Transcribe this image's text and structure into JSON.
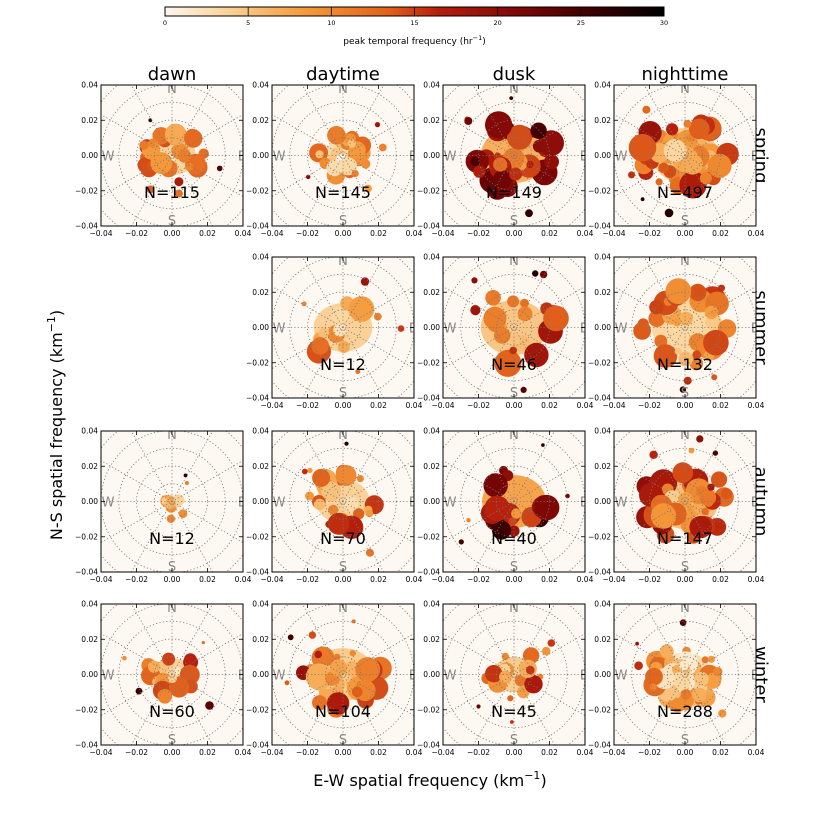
{
  "chart_data": {
    "type": "scatter",
    "title": "",
    "xlabel": "E-W spatial frequency (km",
    "ylabel": "N-S spatial frequency (km",
    "axis_unit_exponent": "−1",
    "xlim": [
      -0.04,
      0.04
    ],
    "ylim": [
      -0.04,
      0.04
    ],
    "ticks": [
      "−0.04",
      "−0.02",
      "0.00",
      "0.02",
      "0.04"
    ],
    "tick_values": [
      -0.04,
      -0.02,
      0.0,
      0.02,
      0.04
    ],
    "grid": "polar dotted",
    "compass": {
      "n": "N",
      "s": "S",
      "e": "E",
      "w": "W"
    },
    "columns": [
      "dawn",
      "daytime",
      "dusk",
      "nighttime"
    ],
    "rows": [
      "spring",
      "summer",
      "autumn",
      "winter"
    ],
    "colorbar": {
      "label": "peak temporal frequency (hr",
      "label_exponent": "−1",
      "min": 0,
      "max": 30,
      "ticks": [
        "0",
        "5",
        "10",
        "15",
        "20",
        "25",
        "30"
      ],
      "tick_values": [
        0,
        5,
        10,
        15,
        20,
        25,
        30
      ],
      "colormap": "gist_heat_r"
    },
    "panels": [
      {
        "row": "spring",
        "col": "dawn",
        "n_label": "N=115",
        "n": 115,
        "extent": 0.018,
        "level": 8
      },
      {
        "row": "spring",
        "col": "daytime",
        "n_label": "N=145",
        "n": 145,
        "extent": 0.014,
        "level": 6
      },
      {
        "row": "spring",
        "col": "dusk",
        "n_label": "N=149",
        "n": 149,
        "extent": 0.025,
        "level": 14
      },
      {
        "row": "spring",
        "col": "nighttime",
        "n_label": "N=497",
        "n": 497,
        "extent": 0.025,
        "level": 9
      },
      {
        "row": "summer",
        "col": "dawn",
        "n_label": "",
        "n": 0,
        "extent": 0,
        "level": 0
      },
      {
        "row": "summer",
        "col": "daytime",
        "n_label": "N=12",
        "n": 12,
        "extent": 0.022,
        "level": 8
      },
      {
        "row": "summer",
        "col": "dusk",
        "n_label": "N=46",
        "n": 46,
        "extent": 0.025,
        "level": 10
      },
      {
        "row": "summer",
        "col": "nighttime",
        "n_label": "N=132",
        "n": 132,
        "extent": 0.025,
        "level": 7
      },
      {
        "row": "autumn",
        "col": "dawn",
        "n_label": "N=12",
        "n": 12,
        "extent": 0.004,
        "level": 4
      },
      {
        "row": "autumn",
        "col": "daytime",
        "n_label": "N=70",
        "n": 70,
        "extent": 0.02,
        "level": 8
      },
      {
        "row": "autumn",
        "col": "dusk",
        "n_label": "N=40",
        "n": 40,
        "extent": 0.024,
        "level": 16
      },
      {
        "row": "autumn",
        "col": "nighttime",
        "n_label": "N=147",
        "n": 147,
        "extent": 0.025,
        "level": 11
      },
      {
        "row": "winter",
        "col": "dawn",
        "n_label": "N=60",
        "n": 60,
        "extent": 0.015,
        "level": 8
      },
      {
        "row": "winter",
        "col": "daytime",
        "n_label": "N=104",
        "n": 104,
        "extent": 0.024,
        "level": 9
      },
      {
        "row": "winter",
        "col": "dusk",
        "n_label": "N=45",
        "n": 45,
        "extent": 0.016,
        "level": 9
      },
      {
        "row": "winter",
        "col": "nighttime",
        "n_label": "N=288",
        "n": 288,
        "extent": 0.02,
        "level": 6
      }
    ]
  }
}
